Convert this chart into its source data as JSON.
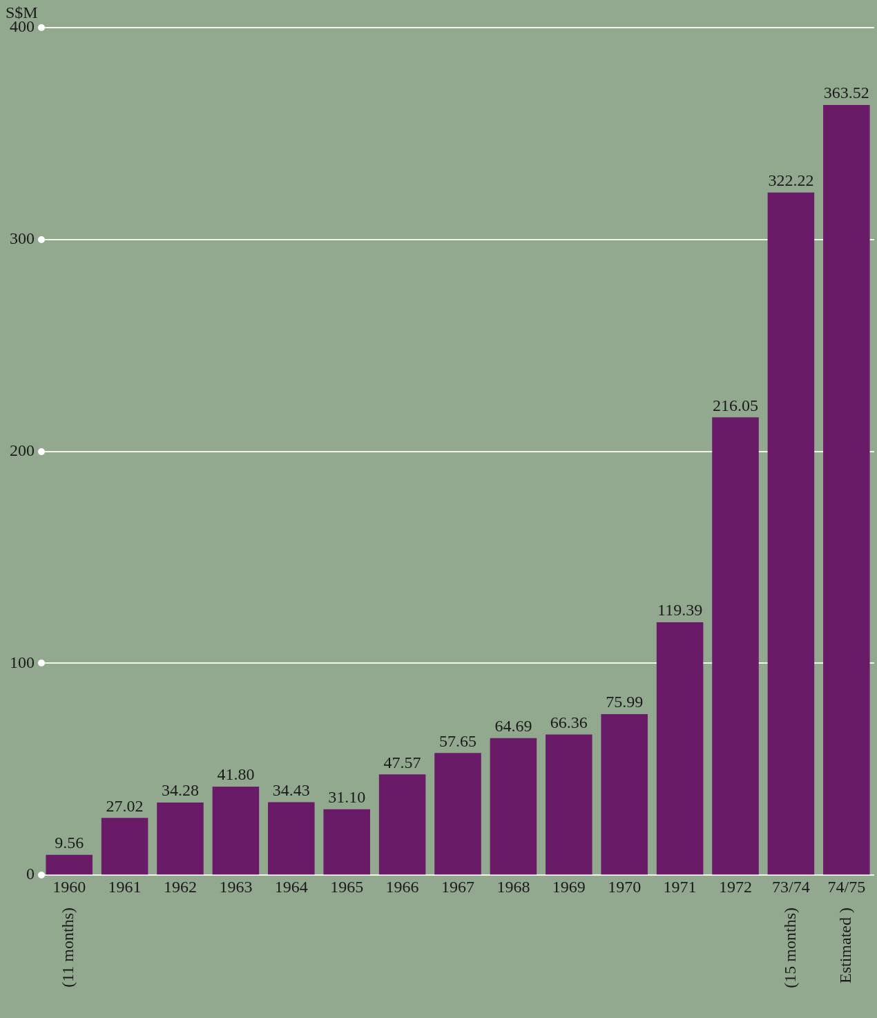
{
  "chart_data": {
    "type": "bar",
    "ylabel": "S$M",
    "categories": [
      "1960",
      "1961",
      "1962",
      "1963",
      "1964",
      "1965",
      "1966",
      "1967",
      "1968",
      "1969",
      "1970",
      "1971",
      "1972",
      "73/74",
      "74/75"
    ],
    "values": [
      9.56,
      27.02,
      34.28,
      41.8,
      34.43,
      31.1,
      47.57,
      57.65,
      64.69,
      66.36,
      75.99,
      119.39,
      216.05,
      322.22,
      363.52
    ],
    "value_labels": [
      "9.56",
      "27.02",
      "34.28",
      "41.80",
      "34.43",
      "31.10",
      "47.57",
      "57.65",
      "64.69",
      "66.36",
      "75.99",
      "119.39",
      "216.05",
      "322.22",
      "363.52"
    ],
    "color": "#6a1b68",
    "ylim": [
      0,
      400
    ],
    "yticks": [
      0,
      100,
      200,
      300,
      400
    ],
    "grid": "y",
    "annotations": [
      "(11 months)",
      "(15 months)",
      "Estimated )"
    ]
  }
}
